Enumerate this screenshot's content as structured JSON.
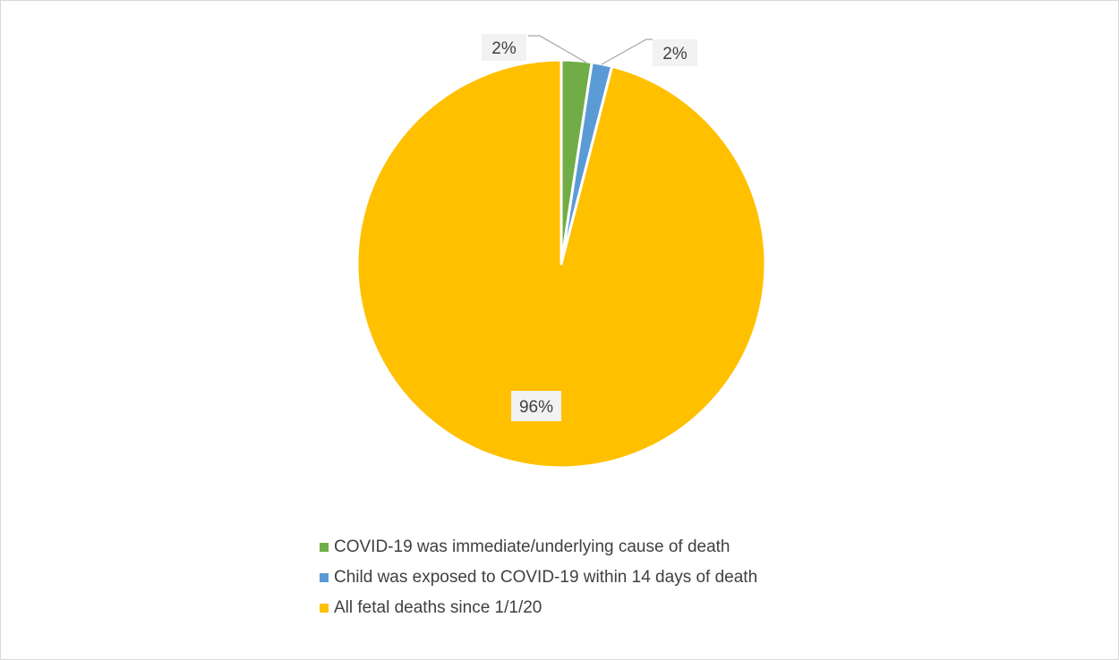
{
  "chart_data": {
    "type": "pie",
    "title": "",
    "slices": [
      {
        "label": "COVID-19 was immediate/underlying cause of death",
        "value": 2.4,
        "display": "2%",
        "color": "#70ad47"
      },
      {
        "label": "Child was exposed to COVID-19 within 14 days of death",
        "value": 1.6,
        "display": "2%",
        "color": "#5b9bd5"
      },
      {
        "label": "All fetal deaths since 1/1/20",
        "value": 96.0,
        "display": "96%",
        "color": "#ffc000"
      }
    ],
    "legend_position": "bottom",
    "start_angle": "12 o'clock, clockwise"
  }
}
